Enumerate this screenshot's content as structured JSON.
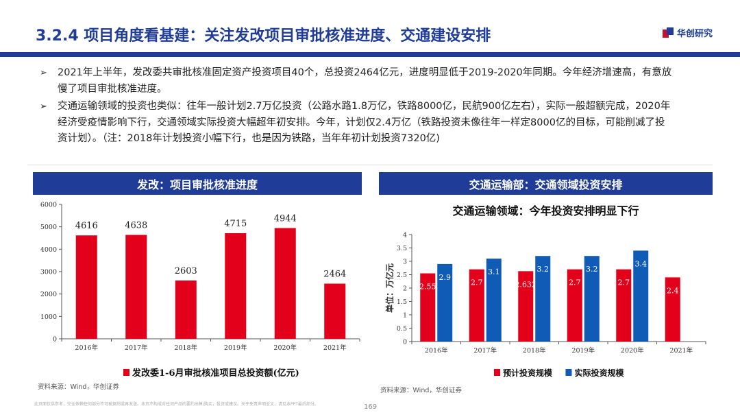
{
  "header": {
    "title": "3.2.4 项目角度看基建：关注发改项目审批核准进度、交通建设安排",
    "logo_text": "华创研究"
  },
  "bullets": [
    {
      "mark": "➢",
      "lines": [
        "2021年上半年，发改委共审批核准固定资产投资项目40个，总投资2464亿元，进度明显低于2019-2020年同期。今年经济增速高，有意放",
        "慢了项目审批核准进度。"
      ]
    },
    {
      "mark": "➢",
      "lines": [
        "交通运输领域的投资也类似：往年一般计划2.7万亿投资（公路水路1.8万亿，铁路8000亿，民航900亿左右），实际一般超额完成，2020年",
        "经济受疫情影响下行，交通领域实际投资大幅超年初安排。今年，计划仅2.4万亿（铁路投资未像往年一样定8000亿的目标，可能削减了投",
        "资计划）。（注：2018年计划投资小幅下行，也是因为铁路，当年年初计划投资7320亿)"
      ]
    }
  ],
  "left_panel": {
    "header": "发改：项目审批核准进度",
    "source": "资料来源：Wind，华创证券"
  },
  "right_panel": {
    "header": "交通运输部：交通领域投资安排",
    "chart_title": "交通运输领域：今年投资安排明显下行",
    "source": "资料来源：Wind，华创证券"
  },
  "chart_data": [
    {
      "type": "bar",
      "categories": [
        "2016年",
        "2017年",
        "2018年",
        "2019年",
        "2020年",
        "2021年"
      ],
      "series": [
        {
          "name": "发改委1-6月审批核准项目总投资额(亿元)",
          "values": [
            4616,
            4638,
            2603,
            4715,
            4944,
            2464
          ],
          "labels": [
            "4616",
            "4638",
            "2603",
            "4715",
            "4944",
            "2464"
          ],
          "color": "#e3001b"
        }
      ],
      "ylim": [
        0,
        6000
      ],
      "yticks": [
        "0",
        "1000",
        "2000",
        "3000",
        "4000",
        "5000",
        "6000"
      ],
      "legend_position": "bottom"
    },
    {
      "type": "bar",
      "categories": [
        "2016年",
        "2017年",
        "2018年",
        "2019年",
        "2020年",
        "2021年"
      ],
      "series": [
        {
          "name": "预计投资规模",
          "values": [
            2.55,
            2.7,
            2.632,
            2.7,
            2.7,
            2.4
          ],
          "labels": [
            "2.55",
            "2.7",
            "2.632",
            "2.7",
            "2.7",
            "2.4"
          ],
          "color": "#e3001b"
        },
        {
          "name": "实际投资规模",
          "values": [
            2.9,
            3.1,
            3.2,
            3.2,
            3.4,
            null
          ],
          "labels": [
            "2.9",
            "3.1",
            "3.2",
            "3.2",
            "3.4",
            ""
          ],
          "color": "#0f5bb5"
        }
      ],
      "title": "交通运输领域：今年投资安排明显下行",
      "ylabel": "单位：万亿元",
      "ylim": [
        0,
        4
      ],
      "yticks": [
        "0",
        "0.5",
        "1",
        "1.5",
        "2",
        "2.5",
        "3",
        "3.5",
        "4"
      ],
      "legend_position": "bottom"
    }
  ],
  "footer": {
    "disclaimer": "此页面仅供参考，完全依赖任何部分不可被复制或再发送。本页不构成对任何产品的要约出售/购买，投资或建议。关于免责声明全文，请见本PPT最后部分。",
    "page_number": "169"
  }
}
